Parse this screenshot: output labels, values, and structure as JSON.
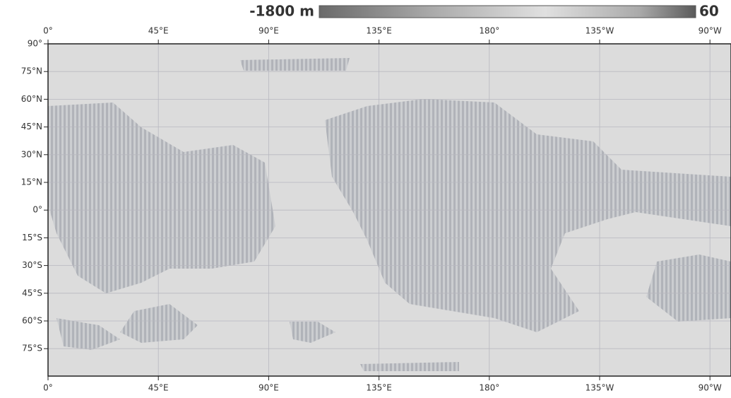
{
  "colorbar": {
    "min_label": "-1800 m",
    "max_label": "60"
  },
  "lon_labels_top": [
    "0°",
    "45°E",
    "90°E",
    "135°E",
    "180°",
    "135°W",
    "90°W"
  ],
  "lon_labels_bottom": [
    "0°",
    "45°E",
    "90°E",
    "135°E",
    "180°",
    "135°W",
    "90°W"
  ],
  "lat_labels": [
    "90°",
    "75°N",
    "60°N",
    "45°N",
    "30°N",
    "15°N",
    "0°",
    "15°S",
    "30°S",
    "45°S",
    "60°S",
    "75°S"
  ]
}
